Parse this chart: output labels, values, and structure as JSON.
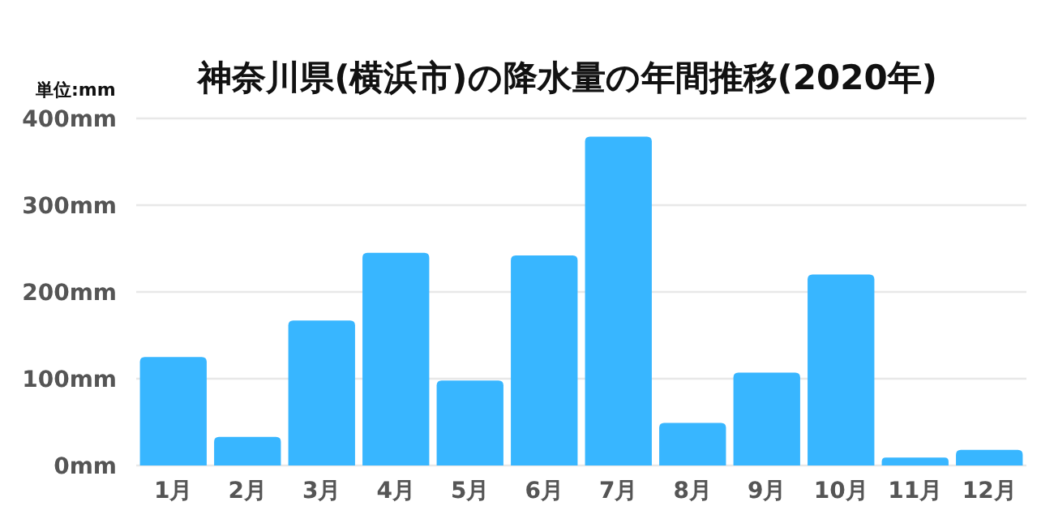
{
  "chart_data": {
    "type": "bar",
    "title": "神奈川県(横浜市)の降水量の年間推移(2020年)",
    "ylabel": "単位:mm",
    "categories": [
      "1月",
      "2月",
      "3月",
      "4月",
      "5月",
      "6月",
      "7月",
      "8月",
      "9月",
      "10月",
      "11月",
      "12月"
    ],
    "values": [
      125,
      33,
      167,
      245,
      98,
      242,
      379,
      49,
      107,
      220,
      9,
      18
    ],
    "color": "#38b6ff",
    "ylim": [
      0,
      400
    ],
    "yticks": [
      {
        "value": 0,
        "label": "0mm"
      },
      {
        "value": 100,
        "label": "100mm"
      },
      {
        "value": 200,
        "label": "200mm"
      },
      {
        "value": 300,
        "label": "300mm"
      },
      {
        "value": 400,
        "label": "400mm"
      }
    ],
    "grid": "y"
  }
}
